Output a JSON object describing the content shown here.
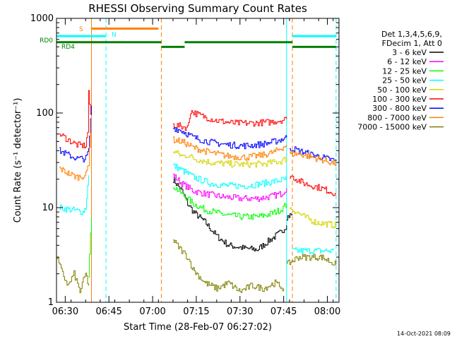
{
  "chart_data": {
    "type": "line",
    "title": "RHESSI Observing Summary Count Rates",
    "xlabel": "Start Time (28-Feb-07 06:27:02)",
    "ylabel": "Count Rate (s⁻¹ detector⁻¹)",
    "y_scale": "log",
    "ylim": [
      1,
      1000
    ],
    "xlim": [
      "06:27",
      "08:04"
    ],
    "x_ticks": [
      "06:30",
      "06:45",
      "07:00",
      "07:15",
      "07:30",
      "07:45",
      "08:00"
    ],
    "y_ticks": [
      "1",
      "10",
      "100",
      "1000"
    ],
    "timestamp": "14-Oct-2021 08:09",
    "legend": {
      "placement": "right",
      "header": [
        "Det 1,3,4,5,6,9,",
        "FDecim 1, Att 0"
      ],
      "entries": [
        {
          "name": "3 - 6 keV",
          "color": "#000000"
        },
        {
          "name": "6 - 12 keV",
          "color": "#ff00ff"
        },
        {
          "name": "12 - 25 keV",
          "color": "#00ff00"
        },
        {
          "name": "25 - 50 keV",
          "color": "#00ffff"
        },
        {
          "name": "50 - 100 keV",
          "color": "#d4d400"
        },
        {
          "name": "100 - 300 keV",
          "color": "#ff0000"
        },
        {
          "name": "300 - 800 keV",
          "color": "#0000ff"
        },
        {
          "name": "800 - 7000 keV",
          "color": "#ff8000"
        },
        {
          "name": "7000 - 15000 keV",
          "color": "#808000"
        }
      ]
    },
    "flags": [
      {
        "label": "S",
        "color": "#ff8000",
        "y": 780,
        "segments": [
          [
            "06:39",
            "07:02"
          ]
        ]
      },
      {
        "label": "N",
        "color": "#00ffff",
        "y": 650,
        "segments": [
          [
            "06:27",
            "06:44"
          ],
          [
            "07:48",
            "08:03"
          ]
        ]
      },
      {
        "label": "RD0",
        "color": "#008000",
        "y": 560,
        "segments": [
          [
            "06:27",
            "07:03"
          ],
          [
            "07:11",
            "07:48"
          ]
        ]
      },
      {
        "label": "RD4",
        "color": "#008000",
        "y": 500,
        "segments": [
          [
            "07:03",
            "07:11"
          ],
          [
            "07:48",
            "08:03"
          ]
        ]
      }
    ],
    "vlines": [
      {
        "time": "06:39",
        "color": "#ff8000",
        "dashed": false
      },
      {
        "time": "06:44",
        "color": "#00ffff",
        "dashed": true
      },
      {
        "time": "07:03",
        "color": "#ff8000",
        "dashed": true
      },
      {
        "time": "07:46",
        "color": "#00ffff",
        "dashed": false
      },
      {
        "time": "07:48",
        "color": "#ff8000",
        "dashed": true
      },
      {
        "time": "08:03",
        "color": "#00ffff",
        "dashed": true
      }
    ],
    "series": [
      {
        "name": "3 - 6 keV",
        "color": "#000000",
        "segments": [
          [
            [
              "07:07",
              20
            ],
            [
              "07:10",
              15
            ],
            [
              "07:12",
              11
            ],
            [
              "07:14",
              9
            ],
            [
              "07:18",
              7
            ],
            [
              "07:22",
              5
            ],
            [
              "07:26",
              4
            ],
            [
              "07:32",
              3.7
            ],
            [
              "07:36",
              3.6
            ],
            [
              "07:40",
              4.5
            ],
            [
              "07:44",
              5.5
            ],
            [
              "07:46",
              6.5
            ]
          ],
          [
            [
              "07:46",
              8
            ],
            [
              "07:48",
              8.5
            ]
          ]
        ]
      },
      {
        "name": "6 - 12 keV",
        "color": "#ff00ff",
        "segments": [
          [
            [
              "07:07",
              22
            ],
            [
              "07:10",
              18
            ],
            [
              "07:14",
              15
            ],
            [
              "07:18",
              14
            ],
            [
              "07:24",
              13
            ],
            [
              "07:30",
              12.5
            ],
            [
              "07:36",
              12.5
            ],
            [
              "07:40",
              13
            ],
            [
              "07:44",
              14
            ],
            [
              "07:46",
              16
            ]
          ]
        ]
      },
      {
        "name": "12 - 25 keV",
        "color": "#00ff00",
        "segments": [
          [
            [
              "06:38",
              2
            ],
            [
              "06:39",
              8
            ]
          ],
          [
            [
              "07:07",
              17
            ],
            [
              "07:10",
              14
            ],
            [
              "07:14",
              11
            ],
            [
              "07:18",
              9.5
            ],
            [
              "07:24",
              8.5
            ],
            [
              "07:30",
              8
            ],
            [
              "07:36",
              8
            ],
            [
              "07:40",
              8.5
            ],
            [
              "07:44",
              9.5
            ],
            [
              "07:46",
              11
            ]
          ]
        ]
      },
      {
        "name": "25 - 50 keV",
        "color": "#00ffff",
        "segments": [
          [
            [
              "06:28",
              10
            ],
            [
              "06:32",
              9.5
            ],
            [
              "06:36",
              9
            ],
            [
              "06:37",
              10
            ],
            [
              "06:38",
              22
            ]
          ],
          [
            [
              "07:07",
              28
            ],
            [
              "07:10",
              25
            ],
            [
              "07:14",
              21
            ],
            [
              "07:20",
              18
            ],
            [
              "07:26",
              17
            ],
            [
              "07:32",
              17
            ],
            [
              "07:38",
              18
            ],
            [
              "07:42",
              19
            ],
            [
              "07:46",
              20
            ]
          ],
          [
            [
              "07:48",
              3.5
            ],
            [
              "08:02",
              3.5
            ]
          ]
        ]
      },
      {
        "name": "50 - 100 keV",
        "color": "#d4d400",
        "segments": [
          [
            [
              "07:07",
              40
            ],
            [
              "07:10",
              35
            ],
            [
              "07:12",
              36
            ],
            [
              "07:14",
              33
            ],
            [
              "07:20",
              30
            ],
            [
              "07:26",
              29
            ],
            [
              "07:32",
              28.5
            ],
            [
              "07:38",
              29
            ],
            [
              "07:44",
              31
            ],
            [
              "07:46",
              33
            ]
          ],
          [
            [
              "07:47",
              10
            ],
            [
              "07:52",
              8
            ],
            [
              "07:56",
              7
            ],
            [
              "08:03",
              6.5
            ]
          ]
        ]
      },
      {
        "name": "100 - 300 keV",
        "color": "#ff0000",
        "segments": [
          [
            [
              "06:28",
              60
            ],
            [
              "06:31",
              52
            ],
            [
              "06:34",
              46
            ],
            [
              "06:37",
              45
            ],
            [
              "06:38",
              75
            ],
            [
              "06:38",
              160
            ],
            [
              "06:39",
              75
            ]
          ],
          [
            [
              "07:07",
              75
            ],
            [
              "07:10",
              72
            ],
            [
              "07:12",
              70
            ],
            [
              "07:13",
              105
            ],
            [
              "07:16",
              95
            ],
            [
              "07:22",
              83
            ],
            [
              "07:28",
              78
            ],
            [
              "07:34",
              78
            ],
            [
              "07:40",
              80
            ],
            [
              "07:46",
              86
            ]
          ],
          [
            [
              "07:47",
              22
            ],
            [
              "07:52",
              18
            ],
            [
              "07:58",
              16
            ],
            [
              "08:03",
              14
            ]
          ]
        ]
      },
      {
        "name": "300 - 800 keV",
        "color": "#0000ff",
        "segments": [
          [
            [
              "06:28",
              40
            ],
            [
              "06:31",
              36
            ],
            [
              "06:34",
              33
            ],
            [
              "06:37",
              33
            ],
            [
              "06:38",
              40
            ],
            [
              "06:39",
              120
            ]
          ],
          [
            [
              "07:07",
              70
            ],
            [
              "07:10",
              65
            ],
            [
              "07:14",
              55
            ],
            [
              "07:20",
              49
            ],
            [
              "07:26",
              46
            ],
            [
              "07:32",
              45
            ],
            [
              "07:38",
              47
            ],
            [
              "07:42",
              50
            ],
            [
              "07:46",
              55
            ]
          ],
          [
            [
              "07:47",
              43
            ],
            [
              "07:50",
              40
            ],
            [
              "07:55",
              36
            ],
            [
              "08:03",
              31
            ]
          ]
        ]
      },
      {
        "name": "800 - 7000 keV",
        "color": "#ff8000",
        "segments": [
          [
            [
              "06:28",
              26
            ],
            [
              "06:31",
              23
            ],
            [
              "06:34",
              21
            ],
            [
              "06:37",
              22
            ],
            [
              "06:38",
              30
            ],
            [
              "06:39",
              95
            ]
          ],
          [
            [
              "07:07",
              52
            ],
            [
              "07:10",
              50
            ],
            [
              "07:14",
              43
            ],
            [
              "07:20",
              38
            ],
            [
              "07:26",
              35
            ],
            [
              "07:32",
              34
            ],
            [
              "07:38",
              36
            ],
            [
              "07:42",
              39
            ],
            [
              "07:46",
              46
            ]
          ],
          [
            [
              "07:47",
              37
            ],
            [
              "07:50",
              37
            ],
            [
              "07:55",
              34
            ],
            [
              "08:03",
              29
            ]
          ]
        ]
      },
      {
        "name": "7000 - 15000 keV",
        "color": "#808000",
        "segments": [
          [
            [
              "06:27",
              3
            ],
            [
              "06:29",
              2
            ],
            [
              "06:31",
              1.5
            ],
            [
              "06:33",
              2
            ],
            [
              "06:35",
              1.3
            ],
            [
              "06:37",
              2
            ],
            [
              "06:38",
              1.5
            ]
          ],
          [
            [
              "07:07",
              4.5
            ],
            [
              "07:10",
              3.5
            ],
            [
              "07:12",
              3
            ],
            [
              "07:14",
              2.2
            ],
            [
              "07:18",
              1.6
            ],
            [
              "07:22",
              1.4
            ],
            [
              "07:26",
              1.6
            ],
            [
              "07:30",
              1.3
            ],
            [
              "07:34",
              1.5
            ],
            [
              "07:38",
              1.4
            ],
            [
              "07:42",
              1.6
            ],
            [
              "07:45",
              1.4
            ]
          ],
          [
            [
              "07:46",
              2.5
            ],
            [
              "07:50",
              3
            ],
            [
              "07:54",
              3
            ],
            [
              "07:58",
              3
            ],
            [
              "08:03",
              2.5
            ]
          ]
        ]
      }
    ]
  }
}
